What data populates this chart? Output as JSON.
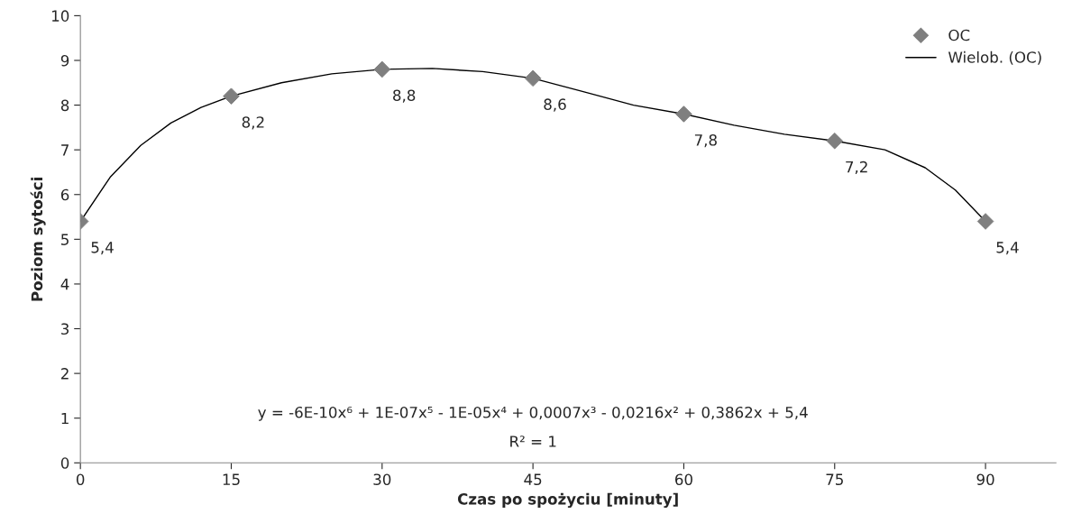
{
  "chart_data": {
    "type": "scatter",
    "xlabel": "Czas po spożyciu [minuty]",
    "ylabel": "Poziom sytości",
    "xlim": [
      0,
      97
    ],
    "xticks": [
      0,
      15,
      30,
      45,
      60,
      75,
      90
    ],
    "ylim": [
      0,
      10
    ],
    "yticks": [
      0,
      1,
      2,
      3,
      4,
      5,
      6,
      7,
      8,
      9,
      10
    ],
    "grid": false,
    "legend": "top right",
    "series": [
      {
        "name": "OC",
        "marker": "diamond",
        "color": "#7f7f7f",
        "x": [
          0,
          15,
          30,
          45,
          60,
          75,
          90
        ],
        "values": [
          5.4,
          8.2,
          8.8,
          8.6,
          7.8,
          7.2,
          5.4
        ],
        "value_labels": [
          "5,4",
          "8,2",
          "8,8",
          "8,6",
          "7,8",
          "7,2",
          "5,4"
        ]
      },
      {
        "name": "Wielob. (OC)",
        "type": "line",
        "line_style": "solid",
        "color": "#000000",
        "x": [
          0,
          3,
          6,
          9,
          12,
          15,
          20,
          25,
          30,
          35,
          40,
          45,
          50,
          55,
          60,
          65,
          70,
          75,
          80,
          84,
          87,
          90
        ],
        "values": [
          5.4,
          6.4,
          7.1,
          7.6,
          7.95,
          8.2,
          8.5,
          8.7,
          8.8,
          8.82,
          8.75,
          8.6,
          8.3,
          8.0,
          7.8,
          7.55,
          7.35,
          7.2,
          7.0,
          6.6,
          6.1,
          5.4
        ]
      }
    ],
    "annotations": [
      "y = -6E-10x⁶ + 1E-07x⁵ - 1E-05x⁴ + 0,0007x³ - 0,0216x² + 0,3862x + 5,4",
      "R² = 1"
    ]
  }
}
